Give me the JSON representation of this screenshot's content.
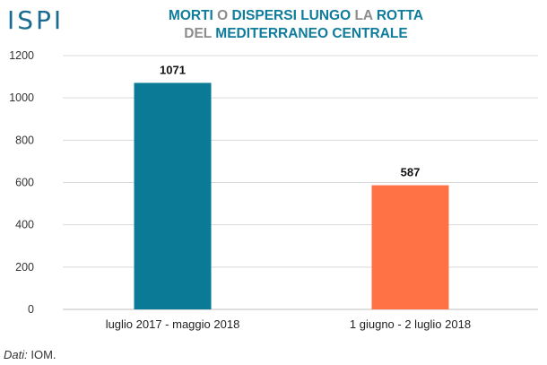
{
  "header": {
    "logo": "ISPI",
    "title_line1": [
      {
        "text": "MORTI",
        "style": "main"
      },
      {
        "text": " O ",
        "style": "small"
      },
      {
        "text": "DISPERSI",
        "style": "main"
      },
      {
        "text": " ",
        "style": "small"
      },
      {
        "text": "LUNGO",
        "style": "main"
      },
      {
        "text": " LA ",
        "style": "small"
      },
      {
        "text": "ROTTA",
        "style": "main"
      }
    ],
    "title_line2": [
      {
        "text": "DEL ",
        "style": "small"
      },
      {
        "text": "MEDITERRANEO CENTRALE",
        "style": "main"
      }
    ]
  },
  "footer": {
    "source_label": "Dati:",
    "source_value": " IOM."
  },
  "chart_data": {
    "type": "bar",
    "title": "MORTI O DISPERSI LUNGO LA ROTTA DEL MEDITERRANEO CENTRALE",
    "categories": [
      "luglio 2017 - maggio 2018",
      "1 giugno - 2 luglio 2018"
    ],
    "values": [
      1071,
      587
    ],
    "data_labels": [
      "1071",
      "587"
    ],
    "bar_colors": [
      "#0a7a96",
      "#ff7245"
    ],
    "ylim": [
      0,
      1200
    ],
    "yticks": [
      0,
      200,
      400,
      600,
      800,
      1000,
      1200
    ],
    "grid": true,
    "xlabel": "",
    "ylabel": ""
  }
}
